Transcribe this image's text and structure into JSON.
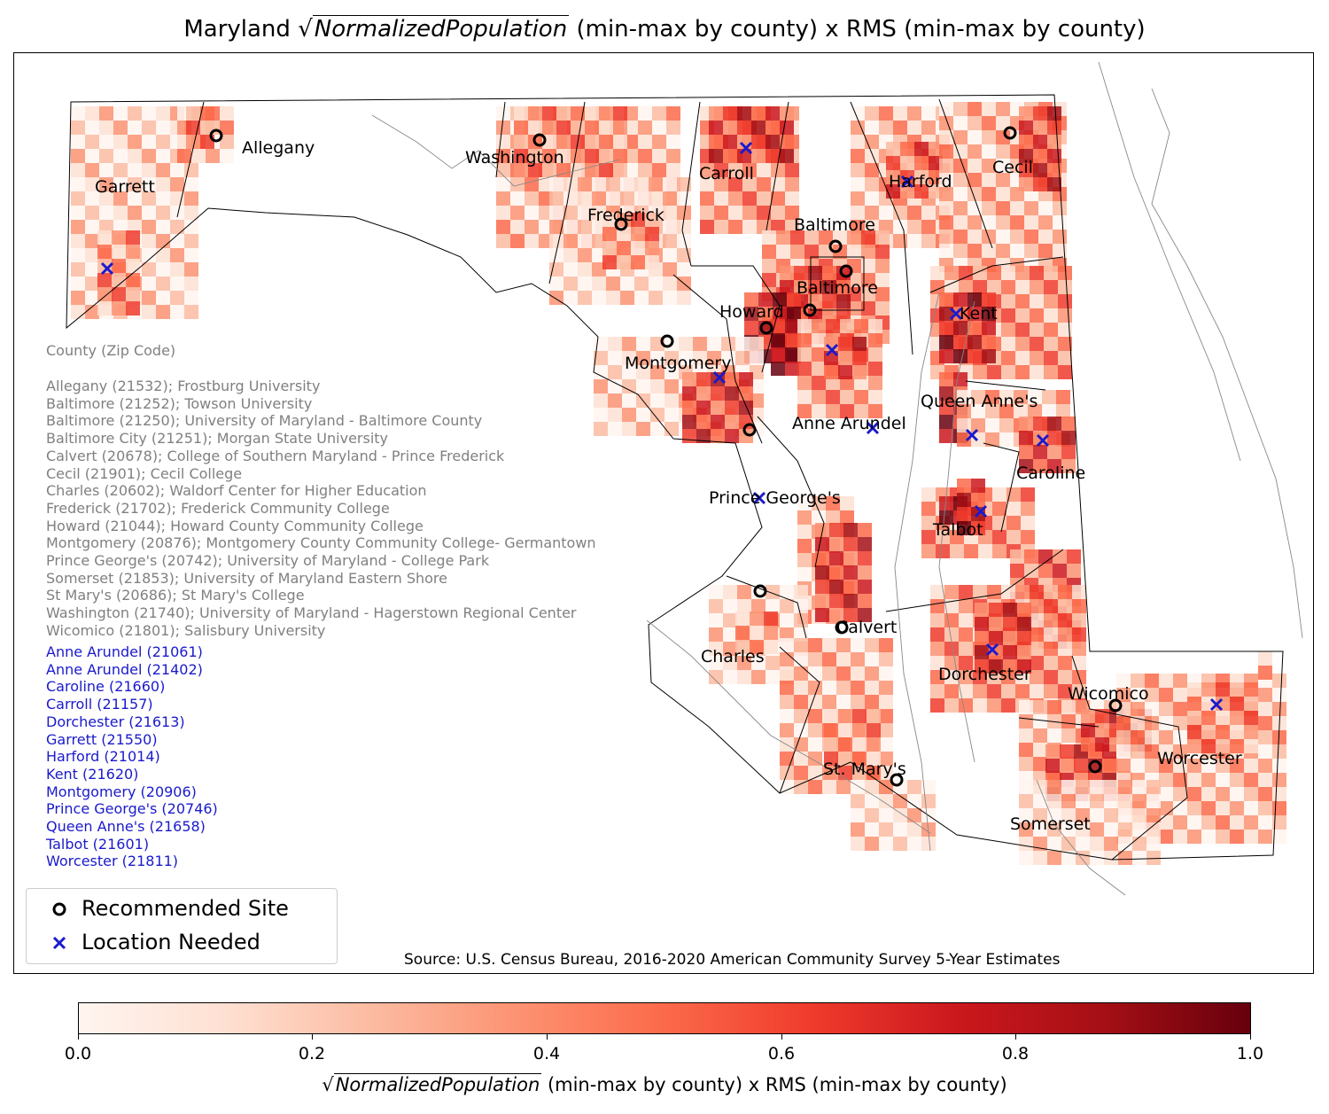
{
  "title": {
    "prefix": "Maryland",
    "radicand": "NormalizedPopulation",
    "suffix": "(min-max by county) x RMS (min-max by county)"
  },
  "counties": [
    "Allegany",
    "Garrett",
    "Washington",
    "Carroll",
    "Harford",
    "Cecil",
    "Frederick",
    "Baltimore",
    "Baltimore",
    "Howard",
    "Kent",
    "Montgomery",
    "Queen Anne's",
    "Anne Arundel",
    "Caroline",
    "Prince George's",
    "Talbot",
    "Calvert",
    "Charles",
    "Dorchester",
    "Wicomico",
    "Worcester",
    "St. Mary's",
    "Somerset"
  ],
  "zip_header": "County (Zip Code)",
  "recommended_sites": [
    "Allegany (21532); Frostburg University",
    "Baltimore (21252); Towson University",
    "Baltimore (21250); University of Maryland - Baltimore County",
    "Baltimore City (21251); Morgan State University",
    "Calvert (20678); College of Southern Maryland - Prince Frederick",
    "Cecil (21901); Cecil College",
    "Charles (20602); Waldorf Center for Higher Education",
    "Frederick (21702); Frederick Community College",
    "Howard (21044); Howard County Community College",
    "Montgomery (20876); Montgomery County Community College- Germantown",
    "Prince George's (20742); University of Maryland - College Park",
    "Somerset (21853); University of Maryland Eastern Shore",
    "St Mary's (20686); St Mary's College",
    "Washington (21740); University of Maryland - Hagerstown Regional Center",
    "Wicomico (21801); Salisbury University"
  ],
  "locations_needed": [
    "Anne Arundel (21061)",
    "Anne Arundel (21402)",
    "Caroline (21660)",
    "Carroll (21157)",
    "Dorchester (21613)",
    "Garrett (21550)",
    "Harford (21014)",
    "Kent (21620)",
    "Montgomery (20906)",
    "Prince George's (20746)",
    "Queen Anne's  (21658)",
    "Talbot (21601)",
    "Worcester (21811)"
  ],
  "legend": {
    "recommended": "Recommended Site",
    "needed": "Location Needed"
  },
  "source": "Source: U.S. Census Bureau, 2016-2020 American Community Survey 5-Year Estimates",
  "colorbar": {
    "ticks": [
      "0.0",
      "0.2",
      "0.4",
      "0.6",
      "0.8",
      "1.0"
    ],
    "radicand": "NormalizedPopulation",
    "suffix": "(min-max by county) x RMS (min-max by county)",
    "colormap": "Reds"
  },
  "colors": {
    "recommended_marker": "#000000",
    "needed_marker": "#1a1acc",
    "needed_text": "#1a1acc",
    "site_text": "#808080"
  },
  "scale": {
    "min": 0.0,
    "max": 1.0
  }
}
